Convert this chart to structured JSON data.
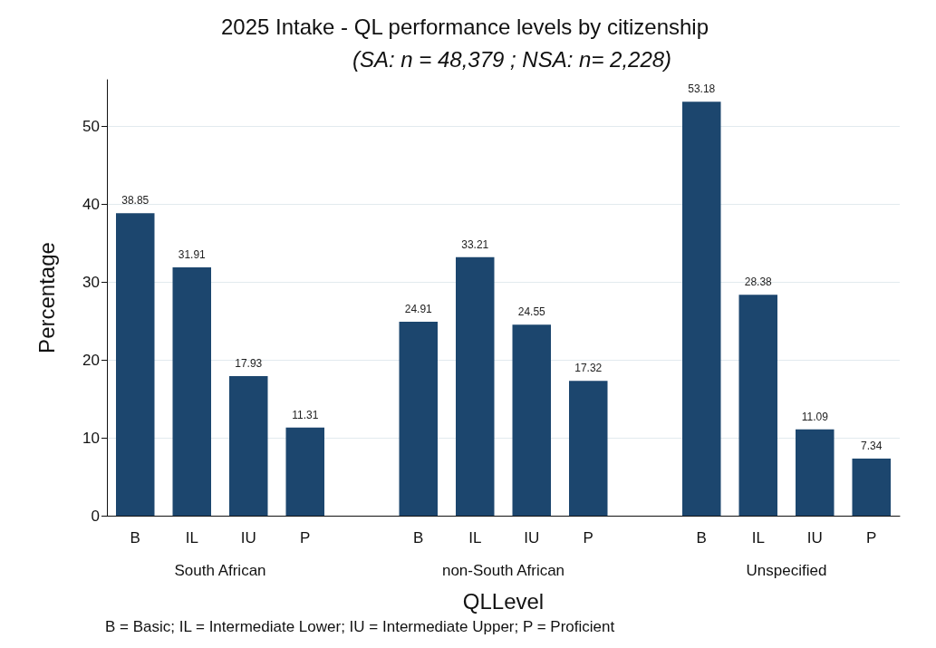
{
  "chart_data": {
    "type": "bar",
    "title": "2025 Intake - QL performance levels by citizenship",
    "subtitle": "(SA: n = 48,379 ; NSA: n= 2,228)",
    "xlabel": "QLLevel",
    "ylabel": "Percentage",
    "categories": [
      "B",
      "IL",
      "IU",
      "P",
      null,
      "B",
      "IL",
      "IU",
      "P",
      null,
      "B",
      "IL",
      "IU",
      "P"
    ],
    "values": [
      38.85,
      31.91,
      17.93,
      11.31,
      null,
      24.91,
      33.21,
      24.55,
      17.32,
      null,
      53.18,
      28.38,
      11.09,
      7.34
    ],
    "color": "#1c466e",
    "data_labels": true,
    "ylim": [
      0,
      56
    ],
    "yticks": [
      0,
      10,
      20,
      30,
      40,
      50
    ],
    "grid": "y",
    "annotations": [
      "South African",
      "non-South African",
      "Unspecified",
      "B = Basic; IL = Intermediate Lower; IU = Intermediate Upper; P = Proficient"
    ]
  }
}
